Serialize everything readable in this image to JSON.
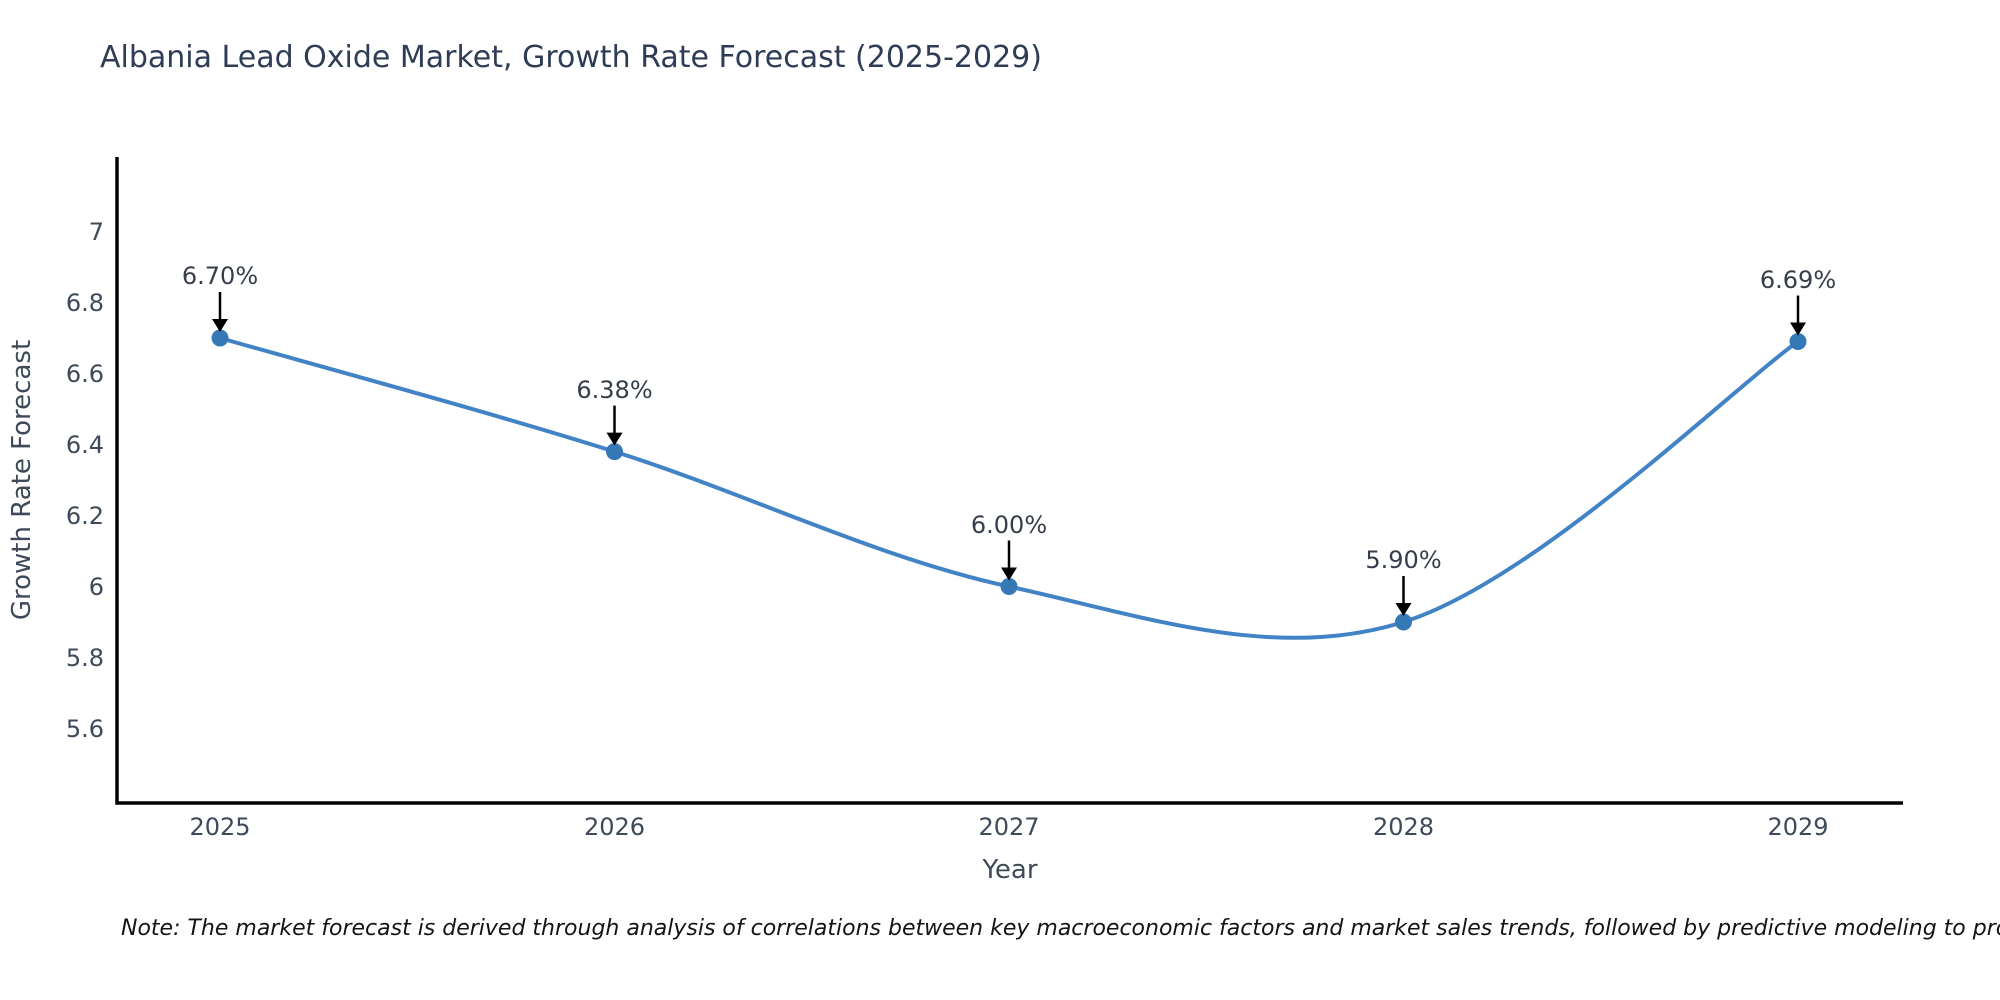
{
  "page": {
    "title": "Albania Lead Oxide Market, Growth Rate Forecast (2025-2029)",
    "note": "Note: The market forecast is derived through analysis of correlations between key macroeconomic factors and market sales trends, followed by predictive modeling to project future sales"
  },
  "chart_data": {
    "type": "line",
    "title": "Albania Lead Oxide Market, Growth Rate Forecast (2025-2029)",
    "x": [
      2025,
      2026,
      2027,
      2028,
      2029
    ],
    "series": [
      {
        "name": "Growth Rate Forecast",
        "values": [
          6.7,
          6.38,
          6.0,
          5.9,
          6.69
        ]
      }
    ],
    "point_labels": [
      "6.70%",
      "6.38%",
      "6.00%",
      "5.90%",
      "6.69%"
    ],
    "xlabel": "Year",
    "ylabel": "Growth Rate Forecast",
    "x_tick_labels": [
      "2025",
      "2026",
      "2027",
      "2028",
      "2029"
    ],
    "y_ticks": [
      5.6,
      5.8,
      6,
      6.2,
      6.4,
      6.6,
      6.8,
      7
    ],
    "ylim": [
      5.38,
      7.22
    ],
    "grid": false,
    "legend_position": "none",
    "line_style": "spline",
    "marker": "circle",
    "annotations": "down-arrow-per-point"
  },
  "colors": {
    "background": "#ffffff",
    "title_text": "#2e3c55",
    "axis_text": "#3e4a59",
    "annotation_text": "#353e4a",
    "axis_line": "#000000",
    "line": "#4183c4",
    "marker": "#3478b6",
    "arrow": "#000000",
    "note_text": "#141414"
  }
}
